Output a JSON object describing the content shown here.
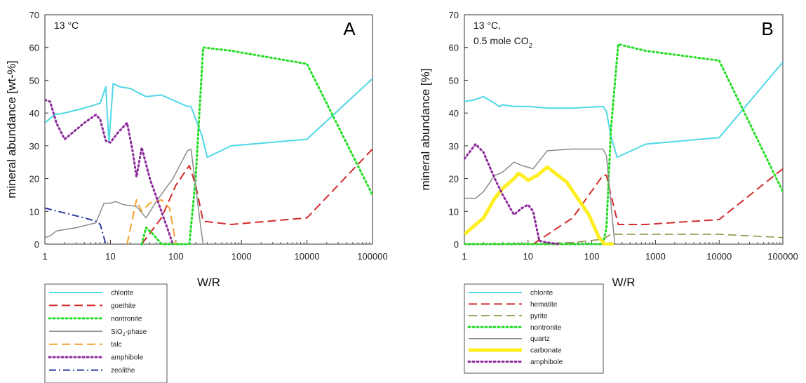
{
  "chart_data": [
    {
      "type": "line",
      "panel_label": "A",
      "annotation": [
        "13 °C"
      ],
      "xlabel": "W/R",
      "ylabel": "mineral abundance [wt-%]",
      "xscale": "log",
      "xlim": [
        1,
        100000
      ],
      "ylim": [
        0,
        70
      ],
      "xticks": [
        "1",
        "10",
        "100",
        "1000",
        "10000",
        "100000"
      ],
      "yticks": [
        "0",
        "10",
        "20",
        "30",
        "40",
        "50",
        "60",
        "70"
      ],
      "grid": false,
      "legend_placement": "below plot",
      "series": [
        {
          "name": "chlorite",
          "color": "#4fd8e6",
          "style": "solid",
          "width": 2,
          "x": [
            1,
            1.4,
            2,
            4,
            7,
            8.5,
            9.5,
            11,
            14,
            20,
            35,
            60,
            150,
            170,
            250,
            300,
            700,
            10000,
            100000
          ],
          "y": [
            37,
            39.5,
            40,
            41.5,
            43,
            48,
            31,
            49,
            48,
            47.5,
            45,
            45.5,
            42,
            42,
            33,
            26.5,
            30,
            32,
            50.5
          ]
        },
        {
          "name": "goethite",
          "color": "#d42a2a",
          "style": "dashed",
          "width": 2,
          "x": [
            30,
            60,
            100,
            160,
            200,
            260,
            700,
            10000,
            100000
          ],
          "y": [
            0,
            8,
            18,
            24,
            18,
            7,
            6,
            8,
            29
          ]
        },
        {
          "name": "nontronite",
          "color": "#22dd22",
          "style": "dotted",
          "width": 3,
          "x": [
            30,
            35,
            45,
            60,
            160,
            200,
            260,
            700,
            10000,
            100000
          ],
          "y": [
            0,
            5,
            3,
            0,
            0,
            20,
            60,
            59,
            55,
            15
          ]
        },
        {
          "name": "SiO₂-phase",
          "color": "#8a8a8a",
          "style": "solid",
          "width": 1.5,
          "x": [
            1,
            1.2,
            1.5,
            3,
            6,
            8,
            10,
            12,
            16,
            25,
            35,
            50,
            90,
            150,
            170,
            240,
            260
          ],
          "y": [
            2,
            2.5,
            4,
            5,
            6.5,
            12.5,
            12.5,
            13,
            12,
            11.5,
            8,
            13,
            20,
            28.5,
            29,
            5,
            0
          ]
        },
        {
          "name": "talc",
          "color": "#f5a030",
          "style": "dashed",
          "width": 2,
          "x": [
            18,
            25,
            30,
            40,
            60,
            80,
            100
          ],
          "y": [
            0,
            13.5,
            10,
            12.5,
            13.5,
            11,
            0
          ]
        },
        {
          "name": "amphibole",
          "color": "#8b2a9a",
          "style": "dotted",
          "width": 3,
          "x": [
            1,
            1.2,
            1.5,
            2,
            4,
            6,
            7,
            8.5,
            10,
            13,
            18,
            22,
            25,
            30,
            40,
            60,
            90
          ],
          "y": [
            44,
            43.5,
            37,
            32,
            37,
            39.5,
            38,
            31.5,
            31,
            34,
            37,
            28,
            20.5,
            29.5,
            20,
            10,
            0
          ]
        },
        {
          "name": "zeolithe",
          "color": "#2a3aa0",
          "style": "dashdot",
          "width": 2,
          "x": [
            1,
            2,
            4,
            6,
            7,
            8.5
          ],
          "y": [
            11,
            9.5,
            8,
            7,
            6,
            0
          ]
        }
      ]
    },
    {
      "type": "line",
      "panel_label": "B",
      "annotation": [
        "13 °C,",
        "0.5 mole CO",
        "2"
      ],
      "xlabel": "W/R",
      "ylabel": "mineral abundance [%]",
      "xscale": "log",
      "xlim": [
        1,
        100000
      ],
      "ylim": [
        0,
        70
      ],
      "xticks": [
        "1",
        "10",
        "100",
        "1000",
        "10000",
        "100000"
      ],
      "yticks": [
        "0",
        "10",
        "20",
        "30",
        "40",
        "50",
        "60",
        "70"
      ],
      "grid": false,
      "legend_placement": "below plot",
      "series": [
        {
          "name": "chlorite",
          "color": "#4fd8e6",
          "style": "solid",
          "width": 2,
          "x": [
            1,
            1.4,
            2,
            3,
            3.5,
            4,
            6,
            10,
            20,
            50,
            150,
            170,
            200,
            250,
            700,
            10000,
            100000
          ],
          "y": [
            43.5,
            44,
            45,
            43,
            42,
            42.5,
            42,
            42,
            41.5,
            41.5,
            42,
            40.5,
            33,
            26.5,
            30.5,
            32.5,
            55.5
          ]
        },
        {
          "name": "hematite",
          "color": "#d42a2a",
          "style": "dashed",
          "width": 2,
          "x": [
            12,
            50,
            150,
            170,
            200,
            260,
            700,
            10000,
            100000
          ],
          "y": [
            0,
            8,
            21,
            21,
            15,
            6,
            6,
            7.5,
            23
          ]
        },
        {
          "name": "pyrite",
          "color": "#8a8a3a",
          "style": "dashed",
          "width": 1.5,
          "x": [
            1,
            10,
            50,
            150,
            200,
            260,
            1000,
            10000,
            100000
          ],
          "y": [
            0,
            0,
            0.5,
            1.5,
            3,
            3,
            3,
            3,
            2
          ]
        },
        {
          "name": "nontronite",
          "color": "#22dd22",
          "style": "dotted",
          "width": 3,
          "x": [
            1,
            150,
            170,
            200,
            260,
            700,
            10000,
            100000
          ],
          "y": [
            0,
            0,
            5,
            35,
            61,
            59,
            56,
            16
          ]
        },
        {
          "name": "quartz",
          "color": "#8a8a8a",
          "style": "solid",
          "width": 1.5,
          "x": [
            1,
            1.5,
            2,
            3,
            3.5,
            4,
            6,
            8,
            12,
            20,
            50,
            150,
            170,
            230
          ],
          "y": [
            14,
            14,
            16,
            21,
            21.5,
            22,
            25,
            24,
            23,
            28.5,
            29,
            29,
            27,
            0
          ]
        },
        {
          "name": "carbonate",
          "color": "#ffee22",
          "style": "solid",
          "width": 5,
          "x": [
            1,
            2,
            3,
            4,
            6,
            7,
            8,
            10,
            14,
            20,
            40,
            90,
            130,
            160,
            220
          ],
          "y": [
            3,
            8,
            14,
            17,
            20,
            21.5,
            21,
            19.5,
            21,
            23.5,
            19,
            9,
            2,
            0,
            0
          ]
        },
        {
          "name": "amphibole",
          "color": "#8b2a9a",
          "style": "dotted",
          "width": 3,
          "x": [
            1,
            1.5,
            2,
            3,
            4,
            6,
            8,
            10,
            12,
            15,
            20,
            30
          ],
          "y": [
            26,
            30.5,
            28,
            20,
            15,
            9,
            11,
            12,
            10,
            1,
            0.5,
            0
          ]
        }
      ]
    }
  ]
}
